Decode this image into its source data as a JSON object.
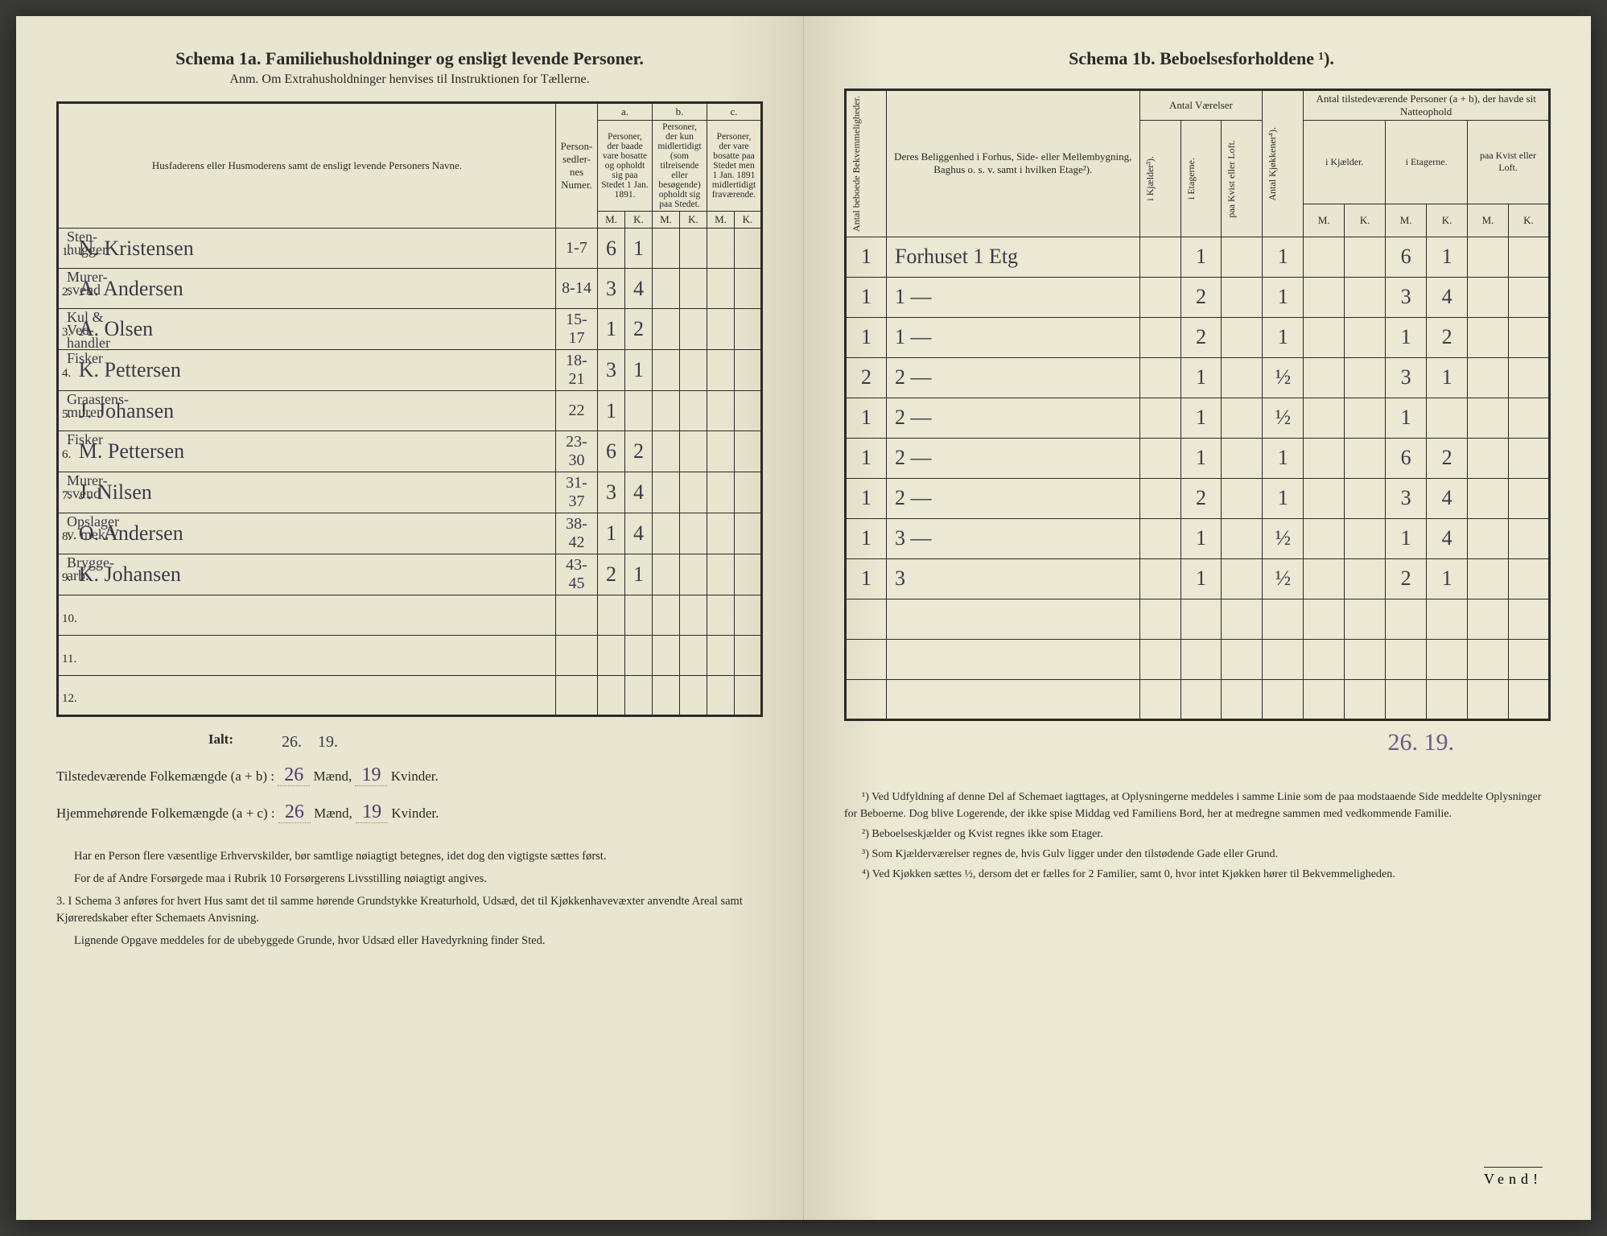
{
  "left": {
    "title": "Schema 1a.   Familiehusholdninger og ensligt levende Personer.",
    "subtitle": "Anm. Om Extrahusholdninger henvises til Instruktionen for Tællerne.",
    "col_headers": {
      "name": "Husfaderens eller Husmoderens samt de ensligt levende Personers Navne.",
      "numer": "Person-sedler-nes Numer.",
      "a_label": "a.",
      "a": "Personer, der baade vare bosatte og opholdt sig paa Stedet 1 Jan. 1891.",
      "b_label": "b.",
      "b": "Personer, der kun midlertidigt (som tilreisende eller besøgende) opholdt sig paa Stedet.",
      "c_label": "c.",
      "c": "Personer, der vare bosatte paa Stedet men 1 Jan. 1891 midlertidigt fraværende.",
      "mk": [
        "M.",
        "K."
      ]
    },
    "rows": [
      {
        "n": "1.",
        "occ": "Sten-hugger",
        "name": "N. Kristensen",
        "num": "1-7",
        "aM": "6",
        "aK": "1",
        "bM": "",
        "bK": "",
        "cM": "",
        "cK": ""
      },
      {
        "n": "2.",
        "occ": "Murer-svend",
        "name": "A. Andersen",
        "num": "8-14",
        "aM": "3",
        "aK": "4",
        "bM": "",
        "bK": "",
        "cM": "",
        "cK": ""
      },
      {
        "n": "3.",
        "occ": "Kul & Ved-handler",
        "name": "A. Olsen",
        "num": "15-17",
        "aM": "1",
        "aK": "2",
        "bM": "",
        "bK": "",
        "cM": "",
        "cK": ""
      },
      {
        "n": "4.",
        "occ": "Fisker",
        "name": "K. Pettersen",
        "num": "18-21",
        "aM": "3",
        "aK": "1",
        "bM": "",
        "bK": "",
        "cM": "",
        "cK": ""
      },
      {
        "n": "5.",
        "occ": "Graastens-murer",
        "name": "J. Johansen",
        "num": "22",
        "aM": "1",
        "aK": "",
        "bM": "",
        "bK": "",
        "cM": "",
        "cK": ""
      },
      {
        "n": "6.",
        "occ": "Fisker",
        "name": "M. Pettersen",
        "num": "23-30",
        "aM": "6",
        "aK": "2",
        "bM": "",
        "bK": "",
        "cM": "",
        "cK": ""
      },
      {
        "n": "7.",
        "occ": "Murer-svend",
        "name": "J. Nilsen",
        "num": "31-37",
        "aM": "3",
        "aK": "4",
        "bM": "",
        "bK": "",
        "cM": "",
        "cK": ""
      },
      {
        "n": "8.",
        "occ": "Opslager v. mek.V",
        "name": "O. Andersen",
        "num": "38-42",
        "aM": "1",
        "aK": "4",
        "bM": "",
        "bK": "",
        "cM": "",
        "cK": ""
      },
      {
        "n": "9.",
        "occ": "Brygge-arb.",
        "name": "K. Johansen",
        "num": "43-45",
        "aM": "2",
        "aK": "1",
        "bM": "",
        "bK": "",
        "cM": "",
        "cK": ""
      },
      {
        "n": "10.",
        "occ": "",
        "name": "",
        "num": "",
        "aM": "",
        "aK": "",
        "bM": "",
        "bK": "",
        "cM": "",
        "cK": ""
      },
      {
        "n": "11.",
        "occ": "",
        "name": "",
        "num": "",
        "aM": "",
        "aK": "",
        "bM": "",
        "bK": "",
        "cM": "",
        "cK": ""
      },
      {
        "n": "12.",
        "occ": "",
        "name": "",
        "num": "",
        "aM": "",
        "aK": "",
        "bM": "",
        "bK": "",
        "cM": "",
        "cK": ""
      }
    ],
    "ialt_label": "Ialt:",
    "ialt_above": {
      "m": "26.",
      "k": "19."
    },
    "totals": {
      "line1_a": "Tilstedeværende Folkemængde (a + b) : ",
      "line1_m": "26",
      "line1_mid": " Mænd, ",
      "line1_k": "19",
      "line1_end": " Kvinder.",
      "line2_a": "Hjemmehørende Folkemængde (a + c) : ",
      "line2_m": "26",
      "line2_k": "19"
    },
    "fine": [
      "Har en Person flere væsentlige Erhvervskilder, bør samtlige nøiagtigt betegnes, idet dog den vigtigste sættes først.",
      "For de af Andre Forsørgede maa i Rubrik 10 Forsørgerens Livsstilling nøiagtigt angives.",
      "3. I Schema 3 anføres for hvert Hus samt det til samme hørende Grundstykke Kreaturhold, Udsæd, det til Kjøkkenhavevæxter anvendte Areal samt Kjøreredskaber efter Schemaets Anvisning.",
      "Lignende Opgave meddeles for de ubebyggede Grunde, hvor Udsæd eller Havedyrkning finder Sted."
    ]
  },
  "right": {
    "title": "Schema 1b.               Beboelsesforholdene ¹).",
    "col_headers": {
      "bekv": "Antal beboede Bekvemmeligheder.",
      "belig": "Deres Beliggenhed i Forhus, Side- eller Mellembygning, Baghus o. s. v. samt i hvilken Etage²).",
      "vaer": "Antal Værelser",
      "kjok": "Antal Kjøkkener⁴).",
      "pers": "Antal tilstedeværende Personer (a + b), der havde sit Natteophold",
      "sub_vaer": [
        "i Kjælder³).",
        "i Etagerne.",
        "paa Kvist eller Loft."
      ],
      "sub_pers": [
        "i Kjælder.",
        "i Etagerne.",
        "paa Kvist eller Loft."
      ],
      "mk": [
        "M.",
        "K."
      ]
    },
    "rows": [
      {
        "bekv": "1",
        "belig": "Forhuset 1 Etg",
        "kj": "",
        "et": "1",
        "kv": "",
        "kjok": "1",
        "pKjM": "",
        "pKjK": "",
        "pEtM": "6",
        "pEtK": "1",
        "pKvM": "",
        "pKvK": ""
      },
      {
        "bekv": "1",
        "belig": "1 —",
        "kj": "",
        "et": "2",
        "kv": "",
        "kjok": "1",
        "pKjM": "",
        "pKjK": "",
        "pEtM": "3",
        "pEtK": "4",
        "pKvM": "",
        "pKvK": ""
      },
      {
        "bekv": "1",
        "belig": "1 —",
        "kj": "",
        "et": "2",
        "kv": "",
        "kjok": "1",
        "pKjM": "",
        "pKjK": "",
        "pEtM": "1",
        "pEtK": "2",
        "pKvM": "",
        "pKvK": ""
      },
      {
        "bekv": "2",
        "belig": "2 —",
        "kj": "",
        "et": "1",
        "kv": "",
        "kjok": "½",
        "pKjM": "",
        "pKjK": "",
        "pEtM": "3",
        "pEtK": "1",
        "pKvM": "",
        "pKvK": ""
      },
      {
        "bekv": "1",
        "belig": "2 —",
        "kj": "",
        "et": "1",
        "kv": "",
        "kjok": "½",
        "pKjM": "",
        "pKjK": "",
        "pEtM": "1",
        "pEtK": "",
        "pKvM": "",
        "pKvK": ""
      },
      {
        "bekv": "1",
        "belig": "2 —",
        "kj": "",
        "et": "1",
        "kv": "",
        "kjok": "1",
        "pKjM": "",
        "pKjK": "",
        "pEtM": "6",
        "pEtK": "2",
        "pKvM": "",
        "pKvK": ""
      },
      {
        "bekv": "1",
        "belig": "2 —",
        "kj": "",
        "et": "2",
        "kv": "",
        "kjok": "1",
        "pKjM": "",
        "pKjK": "",
        "pEtM": "3",
        "pEtK": "4",
        "pKvM": "",
        "pKvK": ""
      },
      {
        "bekv": "1",
        "belig": "3 —",
        "kj": "",
        "et": "1",
        "kv": "",
        "kjok": "½",
        "pKjM": "",
        "pKjK": "",
        "pEtM": "1",
        "pEtK": "4",
        "pKvM": "",
        "pKvK": ""
      },
      {
        "bekv": "1",
        "belig": "3",
        "kj": "",
        "et": "1",
        "kv": "",
        "kjok": "½",
        "pKjM": "",
        "pKjK": "",
        "pEtM": "2",
        "pEtK": "1",
        "pKvM": "",
        "pKvK": ""
      },
      {
        "bekv": "",
        "belig": "",
        "kj": "",
        "et": "",
        "kv": "",
        "kjok": "",
        "pKjM": "",
        "pKjK": "",
        "pEtM": "",
        "pEtK": "",
        "pKvM": "",
        "pKvK": ""
      },
      {
        "bekv": "",
        "belig": "",
        "kj": "",
        "et": "",
        "kv": "",
        "kjok": "",
        "pKjM": "",
        "pKjK": "",
        "pEtM": "",
        "pEtK": "",
        "pKvM": "",
        "pKvK": ""
      },
      {
        "bekv": "",
        "belig": "",
        "kj": "",
        "et": "",
        "kv": "",
        "kjok": "",
        "pKjM": "",
        "pKjK": "",
        "pEtM": "",
        "pEtK": "",
        "pKvM": "",
        "pKvK": ""
      }
    ],
    "grand_total": "26. 19.",
    "footnotes": [
      "¹) Ved Udfyldning af denne Del af Schemaet iagttages, at Oplysningerne meddeles i samme Linie som de paa modstaaende Side meddelte Oplysninger for Beboerne. Dog blive Logerende, der ikke spise Middag ved Familiens Bord, her at medregne sammen med vedkommende Familie.",
      "²) Beboelseskjælder og Kvist regnes ikke som Etager.",
      "³) Som Kjælderværelser regnes de, hvis Gulv ligger under den tilstødende Gade eller Grund.",
      "⁴) Ved Kjøkken sættes ½, dersom det er fælles for 2 Familier, samt 0, hvor intet Kjøkken hører til Bekvemmeligheden."
    ],
    "vend": "Vend!"
  }
}
